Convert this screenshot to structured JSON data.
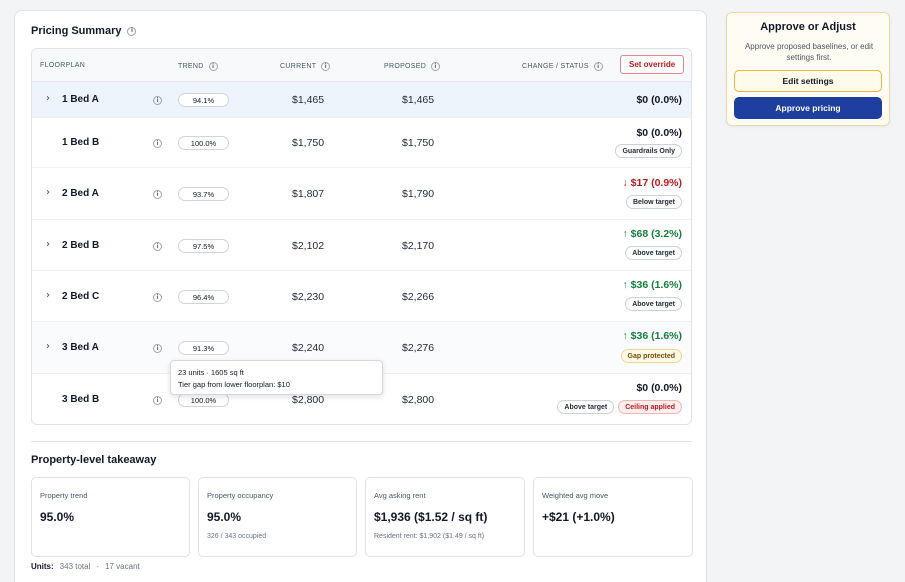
{
  "pricing": {
    "title": "Pricing Summary",
    "columns": {
      "floorplan": "FLOORPLAN",
      "trend": "TREND",
      "current": "CURRENT",
      "proposed": "PROPOSED",
      "change": "CHANGE / STATUS"
    },
    "override_label": "Set override",
    "rows": [
      {
        "name": "1 Bed A",
        "trend": "94.1%",
        "current": "$1,465",
        "proposed": "$1,465",
        "change": "$0 (0.0%)"
      },
      {
        "name": "1 Bed B",
        "trend": "100.0%",
        "current": "$1,750",
        "proposed": "$1,750",
        "change": "$0 (0.0%)",
        "badge1": "Guardrails Only"
      },
      {
        "name": "2 Bed A",
        "trend": "93.7%",
        "current": "$1,807",
        "proposed": "$1,790",
        "change": "↓ $17 (0.9%)",
        "badge1": "Below target"
      },
      {
        "name": "2 Bed B",
        "trend": "97.5%",
        "current": "$2,102",
        "proposed": "$2,170",
        "change": "↑ $68 (3.2%)",
        "badge1": "Above target"
      },
      {
        "name": "2 Bed C",
        "trend": "96.4%",
        "current": "$2,230",
        "proposed": "$2,266",
        "change": "↑ $36 (1.6%)",
        "badge1": "Above target"
      },
      {
        "name": "3 Bed A",
        "trend": "91.3%",
        "current": "$2,240",
        "proposed": "$2,276",
        "change": "↑ $36 (1.6%)",
        "badge1": "Gap protected"
      },
      {
        "name": "3 Bed B",
        "trend": "100.0%",
        "current": "$2,800",
        "proposed": "$2,800",
        "change": "$0 (0.0%)",
        "badge1": "Above target",
        "badge2": "Ceiling applied"
      }
    ],
    "tooltip": {
      "line1": "23 units · 1605 sq ft",
      "line2": "Tier gap from lower floorplan: $10"
    }
  },
  "takeaway": {
    "title": "Property-level takeaway",
    "kpis": [
      {
        "label": "Property trend",
        "value": "95.0%",
        "sub": ""
      },
      {
        "label": "Property occupancy",
        "value": "95.0%",
        "sub": "326 / 343 occupied"
      },
      {
        "label": "Avg asking rent",
        "value": "$1,936 ($1.52 / sq ft)",
        "sub": "Resident rent: $1,902 ($1.49 / sq ft)"
      },
      {
        "label": "Weighted avg move",
        "value": "+$21 (+1.0%)",
        "sub": ""
      }
    ],
    "units_label": "Units:",
    "units_total": "343 total",
    "units_sep": "·",
    "units_vacant": "17 vacant"
  },
  "approve": {
    "title": "Approve or Adjust",
    "desc": "Approve proposed baselines, or edit settings first.",
    "edit_label": "Edit settings",
    "approve_label": "Approve pricing"
  },
  "colors": {
    "accent": "#1f3fa0",
    "positive": "#15803d",
    "negative": "#b91c1c"
  }
}
